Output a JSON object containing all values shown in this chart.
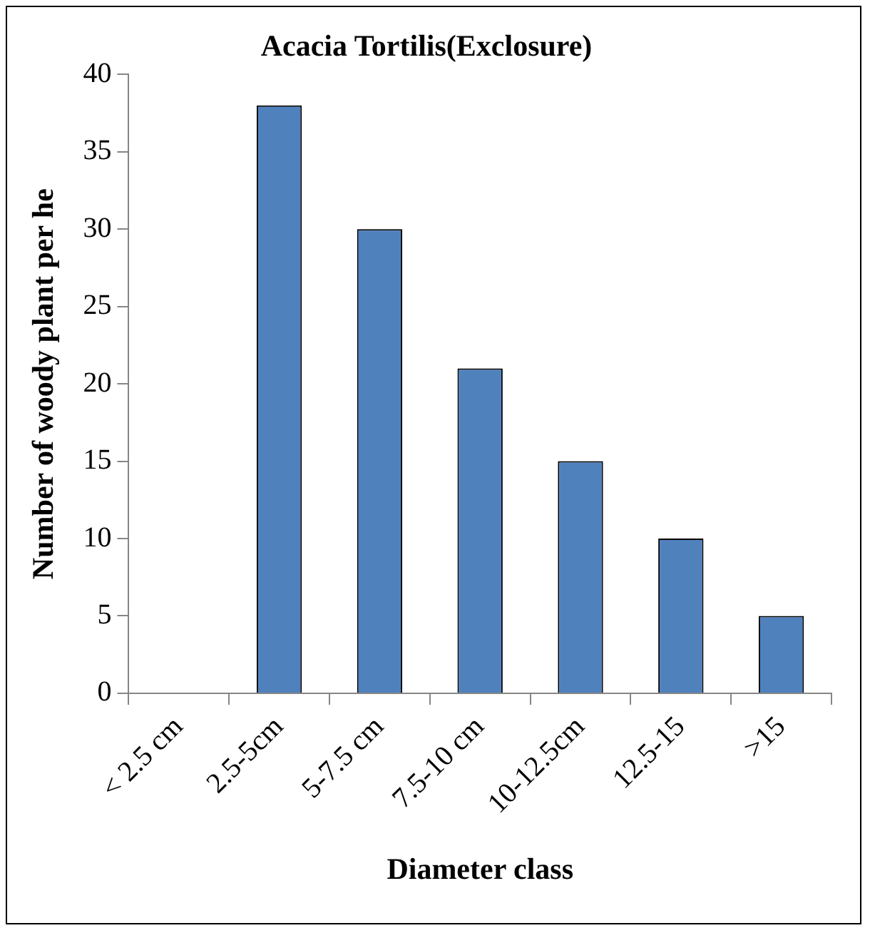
{
  "chart_data": {
    "type": "bar",
    "title": "Acacia Tortilis(Exclosure)",
    "xlabel": "Diameter class",
    "ylabel": "Number of woody plant per he",
    "categories": [
      "< 2.5 cm",
      "2.5-5cm",
      "5-7.5 cm",
      "7.5-10 cm",
      "10-12.5cm",
      "12.5-15",
      ">15"
    ],
    "values": [
      0,
      38,
      30,
      21,
      15,
      10,
      5
    ],
    "color": "#4f81bd",
    "ylim": [
      0,
      40
    ],
    "yticks": [
      0,
      5,
      10,
      15,
      20,
      25,
      30,
      35,
      40
    ],
    "grid": false,
    "legend": false
  }
}
